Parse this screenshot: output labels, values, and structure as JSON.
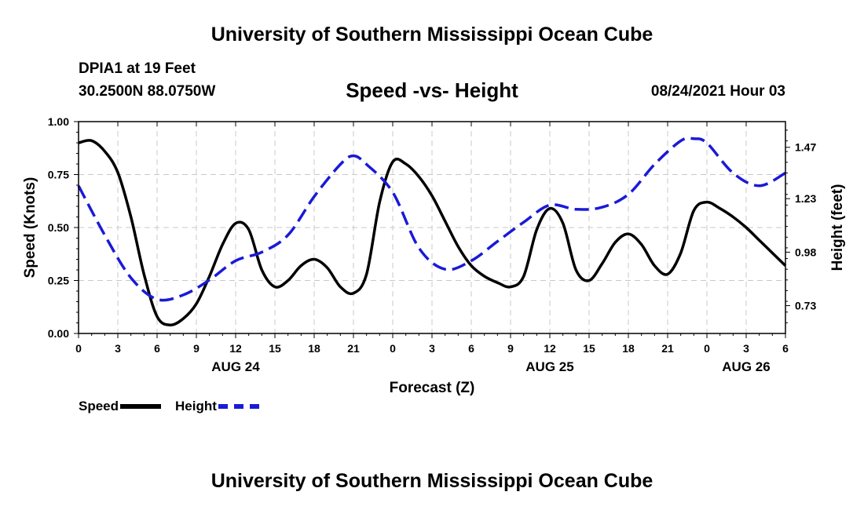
{
  "header": {
    "title_top": "University of Southern Mississippi Ocean Cube",
    "station": "DPIA1 at 19 Feet",
    "coords": "30.2500N  88.0750W",
    "chart_title": "Speed -vs- Height",
    "datetime": "08/24/2021 Hour 03"
  },
  "footer": {
    "title_bottom": "University of Southern Mississippi Ocean Cube"
  },
  "legend": {
    "speed": "Speed",
    "height": "Height"
  },
  "colors": {
    "speed": "#000000",
    "height": "#1a1ad6",
    "grid": "#c8c8c8"
  },
  "chart_data": {
    "type": "line",
    "title": "Speed -vs- Height",
    "xlabel": "Forecast (Z)",
    "ylabel": "Speed (Knots)",
    "y2label": "Height (feet)",
    "x_range_hours": [
      0,
      54
    ],
    "x_ticks": [
      {
        "h": 0,
        "label": "0"
      },
      {
        "h": 3,
        "label": "3"
      },
      {
        "h": 6,
        "label": "6"
      },
      {
        "h": 9,
        "label": "9"
      },
      {
        "h": 12,
        "label": "12"
      },
      {
        "h": 15,
        "label": "15"
      },
      {
        "h": 18,
        "label": "18"
      },
      {
        "h": 21,
        "label": "21"
      },
      {
        "h": 24,
        "label": "0"
      },
      {
        "h": 27,
        "label": "3"
      },
      {
        "h": 30,
        "label": "6"
      },
      {
        "h": 33,
        "label": "9"
      },
      {
        "h": 36,
        "label": "12"
      },
      {
        "h": 39,
        "label": "15"
      },
      {
        "h": 42,
        "label": "18"
      },
      {
        "h": 45,
        "label": "21"
      },
      {
        "h": 48,
        "label": "0"
      },
      {
        "h": 51,
        "label": "3"
      },
      {
        "h": 54,
        "label": "6"
      }
    ],
    "date_labels": [
      {
        "h": 12,
        "label": "AUG 24"
      },
      {
        "h": 36,
        "label": "AUG 25"
      },
      {
        "h": 51,
        "label": "AUG 26"
      }
    ],
    "ylim": [
      0,
      1.0
    ],
    "y_ticks": [
      {
        "v": 0,
        "label": "0.00"
      },
      {
        "v": 0.25,
        "label": "0.25"
      },
      {
        "v": 0.5,
        "label": "0.50"
      },
      {
        "v": 0.75,
        "label": "0.75"
      },
      {
        "v": 1.0,
        "label": "1.00"
      }
    ],
    "y2lim": [
      0.6,
      1.59
    ],
    "y2_ticks": [
      {
        "v": 0.73,
        "label": "0.73"
      },
      {
        "v": 0.98,
        "label": "0.98"
      },
      {
        "v": 1.23,
        "label": "1.23"
      },
      {
        "v": 1.47,
        "label": "1.47"
      }
    ],
    "series": [
      {
        "name": "Speed",
        "axis": "left",
        "style": "solid",
        "x": [
          0,
          1,
          2,
          3,
          4,
          5,
          6,
          7,
          8,
          9,
          10,
          11,
          12,
          13,
          14,
          15,
          16,
          17,
          18,
          19,
          20,
          21,
          22,
          23,
          24,
          25,
          26,
          27,
          28,
          29,
          30,
          31,
          32,
          33,
          34,
          35,
          36,
          37,
          38,
          39,
          40,
          41,
          42,
          43,
          44,
          45,
          46,
          47,
          48,
          49,
          50,
          51,
          52,
          53,
          54
        ],
        "values": [
          0.9,
          0.91,
          0.86,
          0.76,
          0.55,
          0.28,
          0.08,
          0.04,
          0.07,
          0.14,
          0.27,
          0.42,
          0.52,
          0.49,
          0.3,
          0.22,
          0.25,
          0.32,
          0.35,
          0.31,
          0.22,
          0.19,
          0.28,
          0.62,
          0.81,
          0.8,
          0.74,
          0.65,
          0.53,
          0.41,
          0.32,
          0.27,
          0.24,
          0.22,
          0.27,
          0.49,
          0.59,
          0.52,
          0.3,
          0.25,
          0.33,
          0.43,
          0.47,
          0.42,
          0.32,
          0.28,
          0.38,
          0.58,
          0.62,
          0.59,
          0.55,
          0.5,
          0.44,
          0.38,
          0.32
        ]
      },
      {
        "name": "Height",
        "axis": "right",
        "style": "dashed",
        "x": [
          0,
          2,
          4,
          6,
          8,
          10,
          12,
          14,
          16,
          18,
          20,
          21,
          22,
          24,
          26,
          28,
          30,
          32,
          34,
          36,
          38,
          40,
          42,
          44,
          46,
          47,
          48,
          50,
          52,
          54
        ],
        "values": [
          1.29,
          1.06,
          0.86,
          0.76,
          0.78,
          0.85,
          0.94,
          0.98,
          1.06,
          1.24,
          1.39,
          1.43,
          1.39,
          1.26,
          1.0,
          0.9,
          0.94,
          1.03,
          1.12,
          1.2,
          1.18,
          1.19,
          1.25,
          1.39,
          1.5,
          1.51,
          1.49,
          1.35,
          1.29,
          1.35
        ]
      }
    ]
  }
}
